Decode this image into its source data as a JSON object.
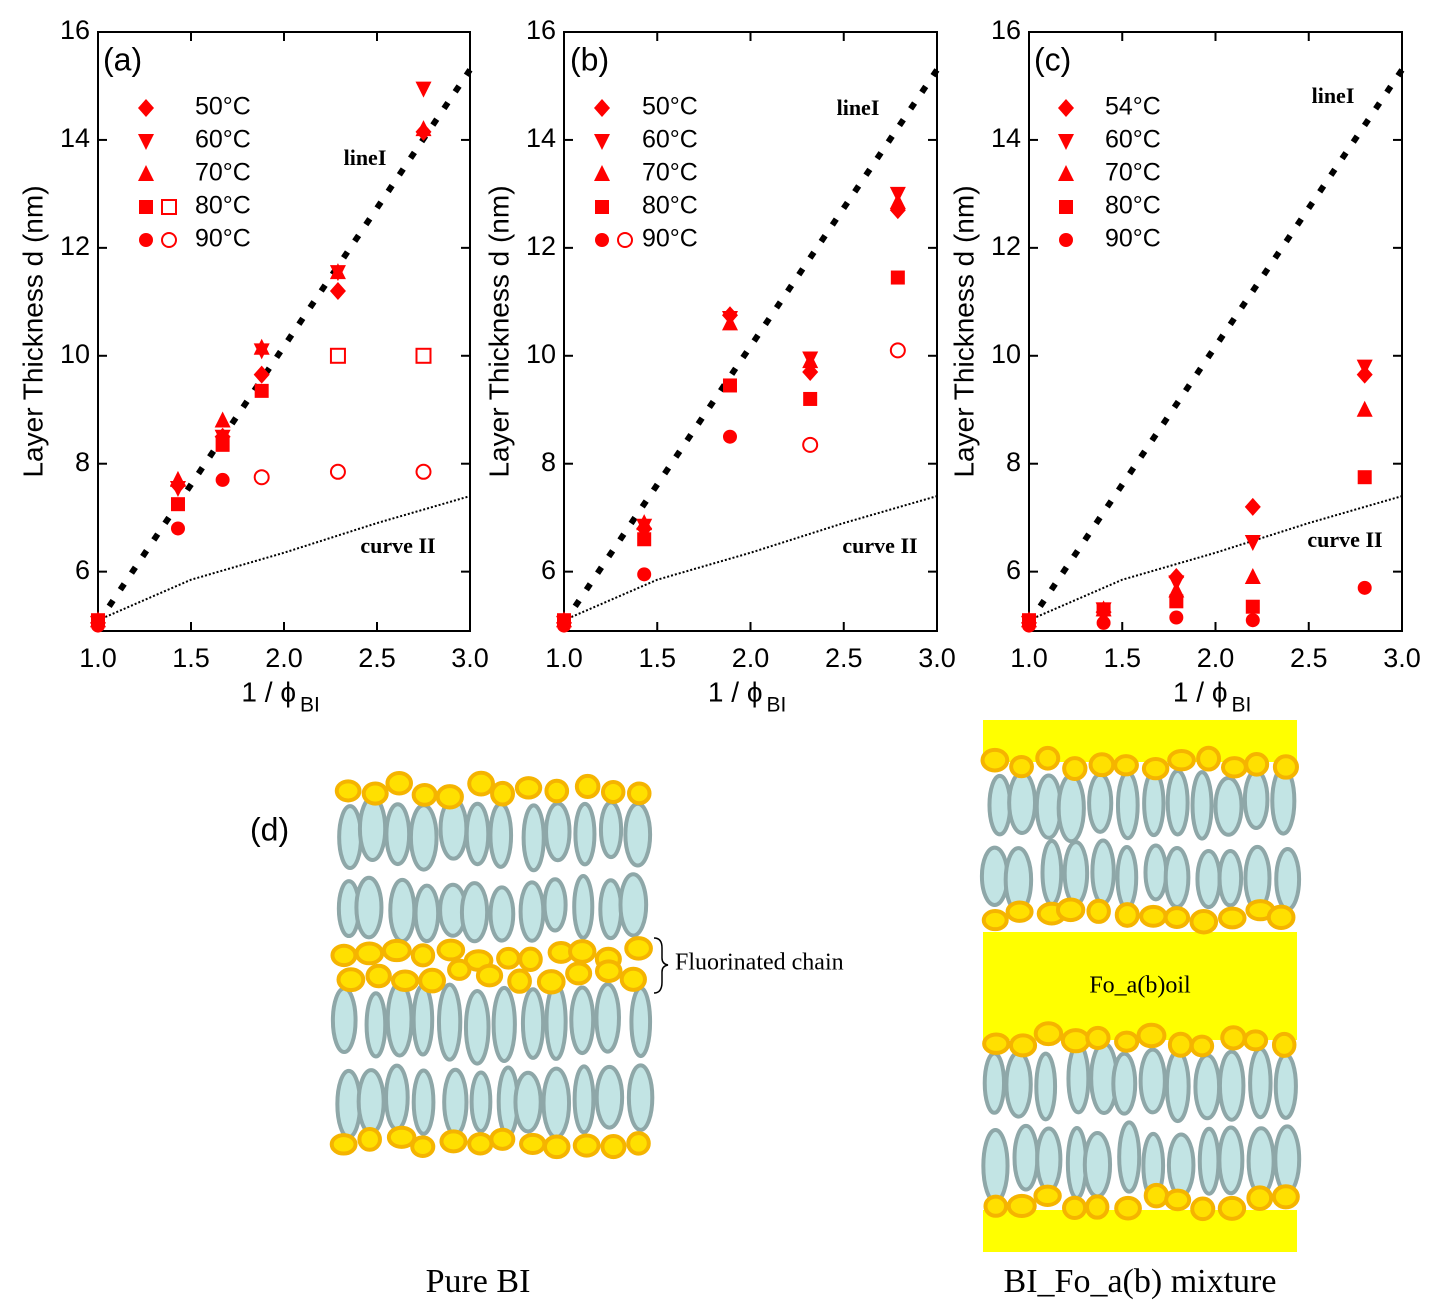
{
  "chart_data": [
    {
      "type": "scatter",
      "panel_label": "(a)",
      "y_label": "Layer Thickness d (nm)",
      "x_label": "1 / ϕ",
      "x_label_sub": "BI",
      "x": [
        1.0,
        1.43,
        1.67,
        1.88,
        2.29,
        2.75
      ],
      "xlim": [
        1,
        3
      ],
      "ylim": [
        4.9,
        16
      ],
      "xticks": [
        {
          "value": 1,
          "label": "1.0"
        },
        1.5,
        {
          "value": 2,
          "label": "2.0"
        },
        2.5,
        {
          "value": 3,
          "label": "3.0"
        }
      ],
      "yticks": [
        6,
        8,
        10,
        12,
        14,
        16
      ],
      "series": [
        {
          "name": "50°C",
          "marker": "diamond",
          "color": "#ff0000",
          "values": [
            5.05,
            7.6,
            8.5,
            9.65,
            11.2,
            14.15
          ]
        },
        {
          "name": "60°C",
          "marker": "triangle-down",
          "color": "#ff0000",
          "values": [
            5.05,
            7.55,
            8.5,
            10.1,
            11.55,
            14.95
          ]
        },
        {
          "name": "70°C",
          "marker": "triangle-up",
          "color": "#ff0000",
          "values": [
            5.1,
            7.7,
            8.8,
            10.15,
            11.55,
            14.2
          ]
        },
        {
          "name": "80°C",
          "marker": "square",
          "color": "#ff0000",
          "values": [
            5.1,
            7.25,
            8.35,
            9.35,
            null,
            null
          ],
          "open_values": [
            null,
            null,
            null,
            null,
            10.0,
            10.0
          ]
        },
        {
          "name": "90°C",
          "marker": "circle",
          "color": "#ff0000",
          "values": [
            5.0,
            6.8,
            7.7,
            null,
            null,
            null
          ],
          "open_values": [
            null,
            null,
            null,
            7.75,
            7.85,
            7.85
          ]
        }
      ],
      "lines": [
        {
          "name": "lineI",
          "style": "dashed",
          "color": "#000000",
          "x": [
            1,
            3
          ],
          "values": [
            5.05,
            15.3
          ]
        },
        {
          "name": "curve II",
          "style": "dotted",
          "color": "#000000",
          "x": [
            1,
            1.5,
            2,
            2.5,
            3
          ],
          "values": [
            5.1,
            5.85,
            6.35,
            6.9,
            7.4
          ]
        }
      ]
    },
    {
      "type": "scatter",
      "panel_label": "(b)",
      "y_label": "Layer Thickness d (nm)",
      "x_label": "1 / ϕ",
      "x_label_sub": "BI",
      "x": [
        1.0,
        1.43,
        1.89,
        2.32,
        2.79
      ],
      "xlim": [
        1,
        3
      ],
      "ylim": [
        4.9,
        16
      ],
      "xticks": [
        {
          "value": 1,
          "label": "1.0"
        },
        1.5,
        {
          "value": 2,
          "label": "2.0"
        },
        2.5,
        {
          "value": 3,
          "label": "3.0"
        }
      ],
      "yticks": [
        6,
        8,
        10,
        12,
        14,
        16
      ],
      "series": [
        {
          "name": "50°C",
          "marker": "diamond",
          "color": "#ff0000",
          "values": [
            5.05,
            6.8,
            10.75,
            9.7,
            12.7
          ]
        },
        {
          "name": "60°C",
          "marker": "triangle-down",
          "color": "#ff0000",
          "values": [
            5.05,
            6.85,
            10.7,
            9.95,
            13.0
          ]
        },
        {
          "name": "70°C",
          "marker": "triangle-up",
          "color": "#ff0000",
          "values": [
            5.1,
            6.9,
            10.6,
            9.9,
            12.85
          ]
        },
        {
          "name": "80°C",
          "marker": "square",
          "color": "#ff0000",
          "values": [
            5.1,
            6.6,
            9.45,
            9.2,
            11.45
          ]
        },
        {
          "name": "90°C",
          "marker": "circle",
          "color": "#ff0000",
          "values": [
            5.0,
            5.95,
            8.5,
            null,
            null
          ],
          "open_values": [
            null,
            null,
            null,
            8.35,
            10.1
          ]
        }
      ],
      "lines": [
        {
          "name": "lineI",
          "style": "dashed",
          "color": "#000000",
          "x": [
            1,
            3
          ],
          "values": [
            5.05,
            15.3
          ]
        },
        {
          "name": "curve II",
          "style": "dotted",
          "color": "#000000",
          "x": [
            1,
            1.5,
            2,
            2.5,
            3
          ],
          "values": [
            5.1,
            5.85,
            6.35,
            6.9,
            7.4
          ]
        }
      ]
    },
    {
      "type": "scatter",
      "panel_label": "(c)",
      "y_label": "Layer Thickness d (nm)",
      "x_label": "1 / ϕ",
      "x_label_sub": "BI",
      "x": [
        1.0,
        1.4,
        1.79,
        2.2,
        2.8
      ],
      "xlim": [
        1,
        3
      ],
      "ylim": [
        4.9,
        16
      ],
      "xticks": [
        {
          "value": 1,
          "label": "1.0"
        },
        1.5,
        {
          "value": 2,
          "label": "2.0"
        },
        2.5,
        {
          "value": 3,
          "label": "3.0"
        }
      ],
      "yticks": [
        6,
        8,
        10,
        12,
        14,
        16
      ],
      "series": [
        {
          "name": "54°C",
          "marker": "diamond",
          "color": "#ff0000",
          "values": [
            5.05,
            5.25,
            5.9,
            7.2,
            9.65
          ]
        },
        {
          "name": "60°C",
          "marker": "triangle-down",
          "color": "#ff0000",
          "values": [
            5.05,
            5.3,
            5.8,
            6.55,
            9.8
          ]
        },
        {
          "name": "70°C",
          "marker": "triangle-up",
          "color": "#ff0000",
          "values": [
            5.1,
            5.3,
            5.65,
            5.9,
            9.0
          ]
        },
        {
          "name": "80°C",
          "marker": "square",
          "color": "#ff0000",
          "values": [
            5.1,
            5.3,
            5.45,
            5.35,
            7.75
          ]
        },
        {
          "name": "90°C",
          "marker": "circle",
          "color": "#ff0000",
          "values": [
            5.0,
            5.05,
            5.15,
            5.1,
            5.7
          ]
        }
      ],
      "lines": [
        {
          "name": "lineI",
          "style": "dashed",
          "color": "#000000",
          "x": [
            1,
            3
          ],
          "values": [
            5.05,
            15.3
          ]
        },
        {
          "name": "curve II",
          "style": "dotted",
          "color": "#000000",
          "x": [
            1,
            1.5,
            2,
            2.5,
            3
          ],
          "values": [
            5.1,
            5.85,
            6.35,
            6.9,
            7.4
          ]
        }
      ]
    }
  ],
  "diagram": {
    "label": "(d)",
    "annotation": "Fluorinated chain",
    "oil_label": "Fo_a(b)oil",
    "captions": [
      "Pure BI",
      "BI_Fo_a(b) mixture"
    ]
  }
}
